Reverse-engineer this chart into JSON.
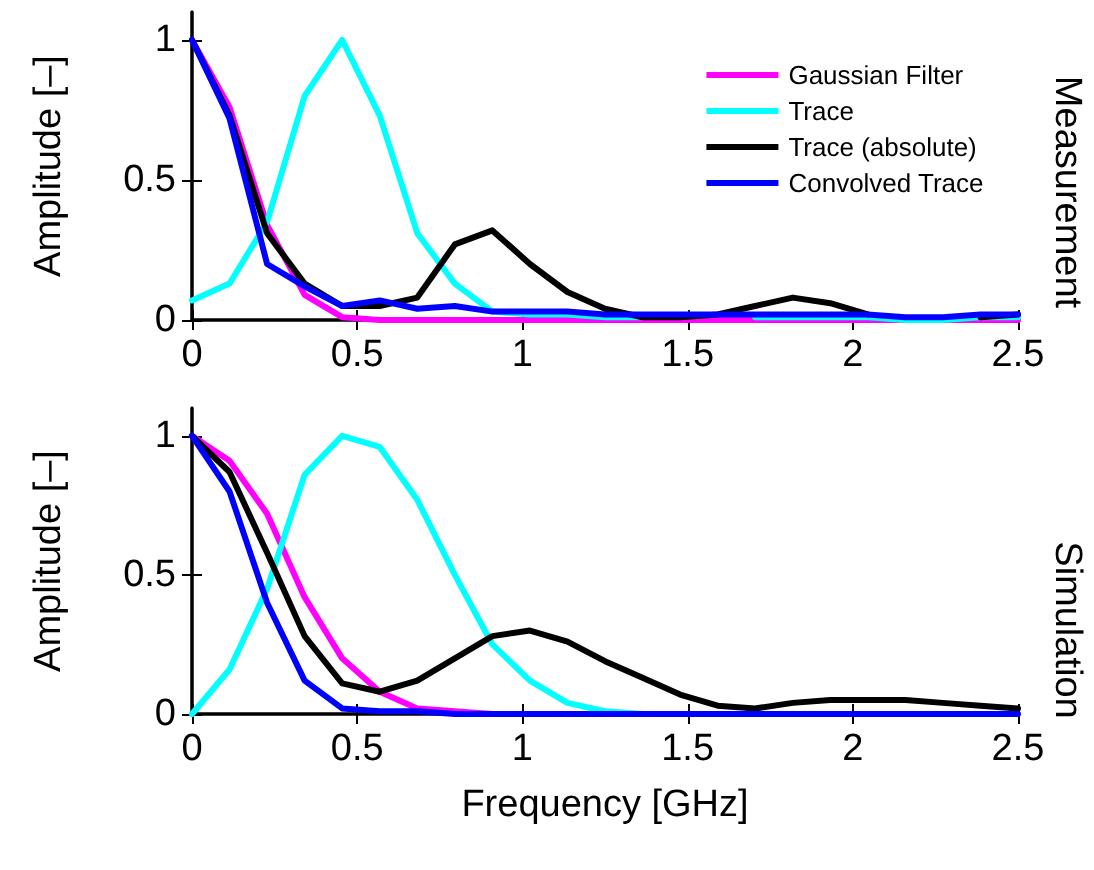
{
  "chart_data": [
    {
      "type": "line",
      "ylabel": "Amplitude [–]",
      "annotations": [
        "Measurement"
      ],
      "x": [
        0,
        0.1136,
        0.2273,
        0.3409,
        0.4545,
        0.5682,
        0.6818,
        0.7955,
        0.9091,
        1.0227,
        1.1364,
        1.25,
        1.3636,
        1.4773,
        1.5909,
        1.7045,
        1.8182,
        1.9318,
        2.0455,
        2.1591,
        2.2727,
        2.3864,
        2.5
      ],
      "xlim": [
        0,
        2.5
      ],
      "xticks": [
        0,
        0.5,
        1,
        1.5,
        2,
        2.5
      ],
      "ylim": [
        0,
        1.1
      ],
      "yticks": [
        0,
        0.5,
        1
      ],
      "grid": false,
      "legend": "top right",
      "marker": "none",
      "line_style": "solid",
      "series": [
        {
          "name": "Gaussian Filter",
          "color": "#ff00ff",
          "values": [
            1,
            0.76,
            0.34,
            0.09,
            0.01,
            0,
            0,
            0,
            0,
            0,
            0,
            0,
            0,
            0,
            0,
            0,
            0,
            0,
            0,
            0,
            0,
            0,
            0
          ]
        },
        {
          "name": "Trace",
          "color": "#00ffff",
          "values": [
            0.07,
            0.13,
            0.35,
            0.8,
            1,
            0.73,
            0.31,
            0.13,
            0.03,
            0.02,
            0.02,
            0.01,
            0.01,
            null,
            null,
            0.01,
            0.01,
            0.01,
            0.01,
            0,
            0,
            0.01,
            0.01
          ]
        },
        {
          "name": "Trace (absolute)",
          "color": "#000000",
          "values": [
            1,
            0.73,
            0.31,
            0.13,
            0.05,
            0.05,
            0.08,
            0.27,
            0.32,
            0.2,
            0.1,
            0.04,
            0.01,
            0.01,
            0.02,
            0.05,
            0.08,
            0.06,
            0.02,
            null,
            null,
            0.01,
            0.02
          ]
        },
        {
          "name": "Convolved Trace",
          "color": "#0000ff",
          "values": [
            1,
            0.72,
            0.2,
            0.12,
            0.05,
            0.07,
            0.04,
            0.05,
            0.03,
            0.03,
            0.03,
            0.02,
            0.02,
            0.02,
            0.02,
            0.02,
            0.02,
            0.02,
            0.02,
            0.01,
            0.01,
            0.02,
            0.02
          ]
        }
      ]
    },
    {
      "type": "line",
      "xlabel": "Frequency [GHz]",
      "ylabel": "Amplitude [–]",
      "annotations": [
        "Simulation"
      ],
      "x": [
        0,
        0.1136,
        0.2273,
        0.3409,
        0.4545,
        0.5682,
        0.6818,
        0.7955,
        0.9091,
        1.0227,
        1.1364,
        1.25,
        1.3636,
        1.4773,
        1.5909,
        1.7045,
        1.8182,
        1.9318,
        2.0455,
        2.1591,
        2.2727,
        2.3864,
        2.5
      ],
      "xlim": [
        0,
        2.5
      ],
      "xticks": [
        0,
        0.5,
        1,
        1.5,
        2,
        2.5
      ],
      "ylim": [
        0,
        1.1
      ],
      "yticks": [
        0,
        0.5,
        1
      ],
      "grid": false,
      "marker": "none",
      "line_style": "solid",
      "series": [
        {
          "color": "#ff00ff",
          "values": [
            1,
            0.91,
            0.72,
            0.42,
            0.2,
            0.08,
            0.02,
            0.01,
            0,
            null,
            null,
            null,
            null,
            null,
            null,
            null,
            null,
            null,
            null,
            null,
            null,
            null,
            null
          ]
        },
        {
          "color": "#00ffff",
          "values": [
            0,
            0.16,
            0.45,
            0.86,
            1,
            0.96,
            0.77,
            0.5,
            0.25,
            0.12,
            0.04,
            0.01,
            0,
            0,
            null,
            null,
            null,
            null,
            null,
            null,
            null,
            null,
            null
          ]
        },
        {
          "color": "#000000",
          "values": [
            1,
            0.87,
            0.58,
            0.28,
            0.11,
            0.08,
            0.12,
            0.2,
            0.28,
            0.3,
            0.26,
            0.19,
            0.13,
            0.07,
            0.03,
            0.02,
            0.04,
            0.05,
            0.05,
            0.05,
            0.04,
            0.03,
            0.02
          ]
        },
        {
          "color": "#0000ff",
          "values": [
            1,
            0.8,
            0.4,
            0.12,
            0.02,
            0.01,
            0.01,
            0,
            0,
            0,
            0,
            0,
            0,
            0,
            0,
            0,
            0,
            0,
            0,
            0,
            0,
            0,
            0
          ]
        }
      ]
    }
  ]
}
